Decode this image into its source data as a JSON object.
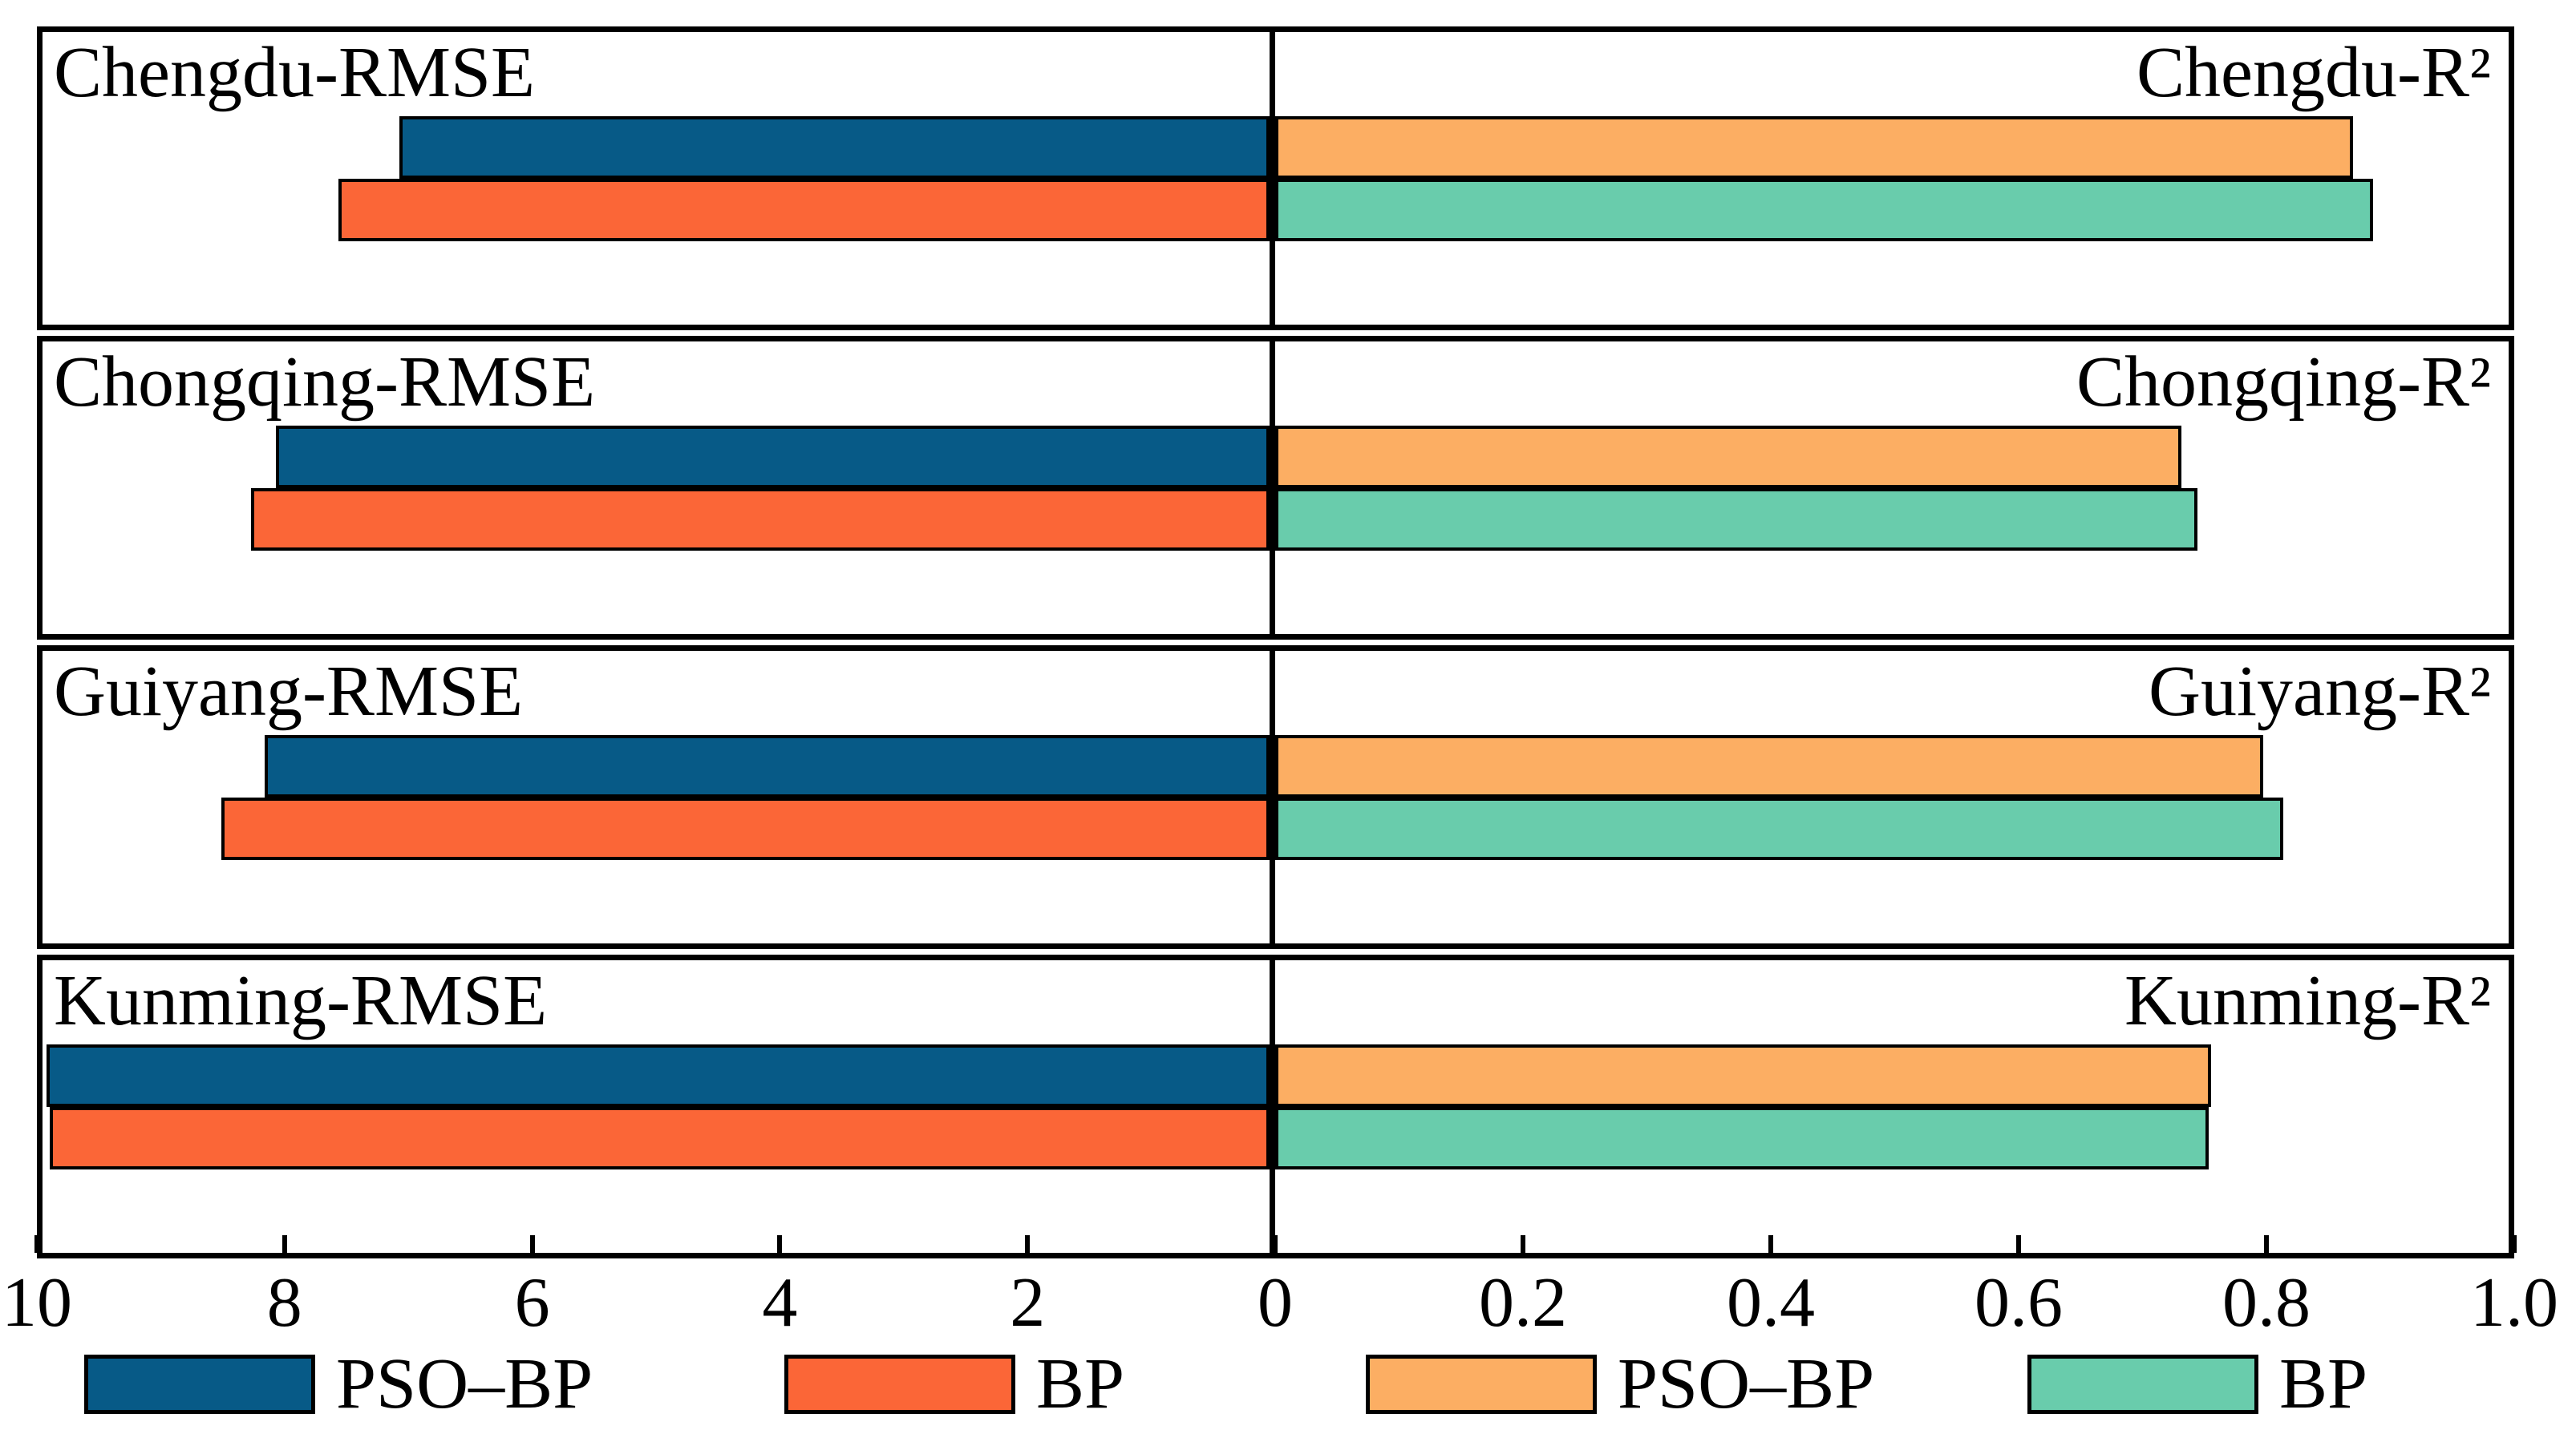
{
  "chart_data": {
    "type": "bar",
    "orientation": "horizontal",
    "layout": "4 rows x 2 columns, shared bottom axes, legend at bottom",
    "grid": false,
    "rows": [
      {
        "city": "Chengdu",
        "rmse_label": "Chengdu-RMSE",
        "r2_label": "Chengdu-R²",
        "rmse": {
          "pso_bp": 7.09,
          "bp": 7.59
        },
        "r2": {
          "pso_bp": 0.874,
          "bp": 0.89
        }
      },
      {
        "city": "Chongqing",
        "rmse_label": "Chongqing-RMSE",
        "r2_label": "Chongqing-R²",
        "rmse": {
          "pso_bp": 8.1,
          "bp": 8.3
        },
        "r2": {
          "pso_bp": 0.735,
          "bp": 0.748
        }
      },
      {
        "city": "Guiyang",
        "rmse_label": "Guiyang-RMSE",
        "r2_label": "Guiyang-R²",
        "rmse": {
          "pso_bp": 8.19,
          "bp": 8.54
        },
        "r2": {
          "pso_bp": 0.801,
          "bp": 0.817
        }
      },
      {
        "city": "Kunming",
        "rmse_label": "Kunming-RMSE",
        "r2_label": "Kunming-R²",
        "rmse": {
          "pso_bp": 9.97,
          "bp": 9.94
        },
        "r2": {
          "pso_bp": 0.759,
          "bp": 0.757
        }
      }
    ],
    "left_axis": {
      "metric": "RMSE",
      "range": [
        10,
        0
      ],
      "direction": "reversed",
      "tick_labels": [
        "10",
        "8",
        "6",
        "4",
        "2"
      ]
    },
    "shared_zero_label": "0",
    "right_axis": {
      "metric": "R²",
      "range": [
        0,
        1.0
      ],
      "tick_labels": [
        "0.2",
        "0.4",
        "0.6",
        "0.8",
        "1.0"
      ]
    },
    "colors": {
      "rmse": {
        "pso_bp": "#075A87",
        "bp": "#FB6637"
      },
      "r2": {
        "pso_bp": "#FCAE63",
        "bp": "#69CCAC"
      },
      "border": "#000000"
    },
    "legend_position": "bottom",
    "legends": {
      "rmse": [
        {
          "label": "PSO–BP",
          "color": "#075A87"
        },
        {
          "label": "BP",
          "color": "#FB6637"
        }
      ],
      "r2": [
        {
          "label": "PSO–BP",
          "color": "#FCAE63"
        },
        {
          "label": "BP",
          "color": "#69CCAC"
        }
      ]
    }
  }
}
